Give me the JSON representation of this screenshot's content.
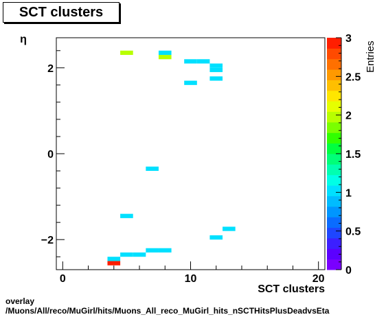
{
  "title": "SCT clusters",
  "footer": {
    "line1": "overlay",
    "line2": "/Muons/All/reco/MuGirl/hits/Muons_All_reco_MuGirl_hits_nSCTHitsPlusDeadvsEta"
  },
  "chart_data": {
    "type": "heatmap",
    "xlabel": "SCT clusters",
    "ylabel": "η",
    "zlabel": "Entries",
    "xlim": [
      -0.5,
      20.5
    ],
    "ylim": [
      -2.7,
      2.7
    ],
    "zlim": [
      0,
      3
    ],
    "x_ticks": [
      0,
      10,
      20
    ],
    "y_ticks": [
      -2,
      0,
      2
    ],
    "z_ticks": [
      "0",
      "0.5",
      "1",
      "1.5",
      "2",
      "2.5",
      "3"
    ],
    "grid": false,
    "bin_width_x": 1,
    "bin_height_y": 0.1,
    "cells": [
      {
        "x": 4,
        "y": -2.55,
        "value": 3
      },
      {
        "x": 4,
        "y": -2.45,
        "value": 1
      },
      {
        "x": 5,
        "y": -2.35,
        "value": 1
      },
      {
        "x": 6,
        "y": -2.35,
        "value": 1
      },
      {
        "x": 7,
        "y": -2.25,
        "value": 1
      },
      {
        "x": 8,
        "y": -2.25,
        "value": 1
      },
      {
        "x": 12,
        "y": -1.95,
        "value": 1
      },
      {
        "x": 13,
        "y": -1.75,
        "value": 1
      },
      {
        "x": 5,
        "y": -1.45,
        "value": 1
      },
      {
        "x": 7,
        "y": -0.35,
        "value": 1
      },
      {
        "x": 10,
        "y": 1.65,
        "value": 1
      },
      {
        "x": 12,
        "y": 1.75,
        "value": 1
      },
      {
        "x": 12,
        "y": 1.95,
        "value": 1
      },
      {
        "x": 12,
        "y": 2.05,
        "value": 1
      },
      {
        "x": 10,
        "y": 2.15,
        "value": 1
      },
      {
        "x": 11,
        "y": 2.15,
        "value": 1
      },
      {
        "x": 8,
        "y": 2.25,
        "value": 2
      },
      {
        "x": 5,
        "y": 2.35,
        "value": 2
      },
      {
        "x": 8,
        "y": 2.35,
        "value": 1
      }
    ]
  }
}
